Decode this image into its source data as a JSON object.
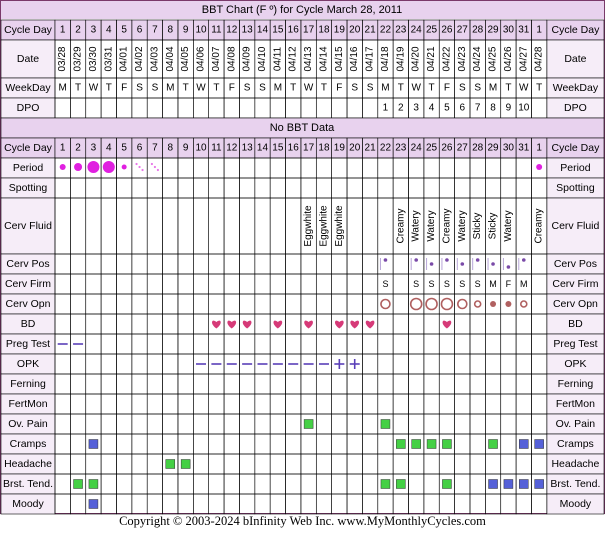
{
  "title": "BBT Chart (F º) for Cycle March 28, 2011",
  "no_data_label": "No BBT Data",
  "copyright": "Copyright © 2003-2024 bInfinity Web Inc.     www.MyMonthlyCycles.com",
  "colors": {
    "frame": "#7a3a6a",
    "header_bg": "#e8d2ee",
    "label_bg": "#f6edf8",
    "grid": "#000000",
    "period": "#e020e0",
    "spotting": "#e878e8",
    "green": "#44d044",
    "blue": "#5560d8",
    "line": "#5a3fb8",
    "heart": "#d63a78",
    "ring": "#b06060"
  },
  "chart_data": {
    "type": "table",
    "labels": {
      "cycle_day": "Cycle Day",
      "date": "Date",
      "weekday": "WeekDay",
      "dpo": "DPO",
      "period": "Period",
      "spotting": "Spotting",
      "cerv_fluid": "Cerv Fluid",
      "cerv_pos": "Cerv Pos",
      "cerv_firm": "Cerv Firm",
      "cerv_opn": "Cerv Opn",
      "bd": "BD",
      "preg_test": "Preg Test",
      "opk": "OPK",
      "ferning": "Ferning",
      "fertmon": "FertMon",
      "ov_pain": "Ov. Pain",
      "cramps": "Cramps",
      "headache": "Headache",
      "brst_tend": "Brst. Tend.",
      "moody": "Moody"
    },
    "cycle_days": [
      "1",
      "2",
      "3",
      "4",
      "5",
      "6",
      "7",
      "8",
      "9",
      "10",
      "11",
      "12",
      "13",
      "14",
      "15",
      "16",
      "17",
      "18",
      "19",
      "20",
      "21",
      "22",
      "23",
      "24",
      "25",
      "26",
      "27",
      "28",
      "29",
      "30",
      "31",
      "1"
    ],
    "dates": [
      "03/28",
      "03/29",
      "03/30",
      "03/31",
      "04/01",
      "04/02",
      "04/03",
      "04/04",
      "04/05",
      "04/06",
      "04/07",
      "04/08",
      "04/09",
      "04/10",
      "04/11",
      "04/12",
      "04/13",
      "04/14",
      "04/15",
      "04/16",
      "04/17",
      "04/18",
      "04/19",
      "04/20",
      "04/21",
      "04/22",
      "04/23",
      "04/24",
      "04/25",
      "04/26",
      "04/27",
      "04/28"
    ],
    "weekdays": [
      "M",
      "T",
      "W",
      "T",
      "F",
      "S",
      "S",
      "M",
      "T",
      "W",
      "T",
      "F",
      "S",
      "S",
      "M",
      "T",
      "W",
      "T",
      "F",
      "S",
      "S",
      "M",
      "T",
      "W",
      "T",
      "F",
      "S",
      "S",
      "M",
      "T",
      "W",
      "T"
    ],
    "dpo": [
      "",
      "",
      "",
      "",
      "",
      "",
      "",
      "",
      "",
      "",
      "",
      "",
      "",
      "",
      "",
      "",
      "",
      "",
      "",
      "",
      "",
      "1",
      "2",
      "3",
      "4",
      "5",
      "6",
      "7",
      "8",
      "9",
      "10",
      ""
    ],
    "period": [
      {
        "col": 0,
        "kind": "dot",
        "size": 3
      },
      {
        "col": 1,
        "kind": "dot",
        "size": 4
      },
      {
        "col": 2,
        "kind": "dot",
        "size": 6
      },
      {
        "col": 3,
        "kind": "dot",
        "size": 6
      },
      {
        "col": 4,
        "kind": "dot",
        "size": 2.5
      },
      {
        "col": 5,
        "kind": "spot"
      },
      {
        "col": 6,
        "kind": "spot"
      },
      {
        "col": 31,
        "kind": "dot",
        "size": 3
      }
    ],
    "cerv_fluid": [
      {
        "col": 16,
        "label": "Eggwhite"
      },
      {
        "col": 17,
        "label": "Eggwhite"
      },
      {
        "col": 18,
        "label": "Eggwhite"
      },
      {
        "col": 22,
        "label": "Creamy"
      },
      {
        "col": 23,
        "label": "Watery"
      },
      {
        "col": 24,
        "label": "Watery"
      },
      {
        "col": 25,
        "label": "Creamy"
      },
      {
        "col": 26,
        "label": "Watery"
      },
      {
        "col": 27,
        "label": "Sticky"
      },
      {
        "col": 28,
        "label": "Sticky"
      },
      {
        "col": 29,
        "label": "Watery"
      },
      {
        "col": 31,
        "label": "Creamy"
      }
    ],
    "cerv_pos": [
      {
        "col": 21,
        "level": "high"
      },
      {
        "col": 23,
        "level": "high"
      },
      {
        "col": 24,
        "level": "mid"
      },
      {
        "col": 25,
        "level": "high"
      },
      {
        "col": 26,
        "level": "mid"
      },
      {
        "col": 27,
        "level": "high"
      },
      {
        "col": 28,
        "level": "mid"
      },
      {
        "col": 29,
        "level": "low"
      },
      {
        "col": 30,
        "level": "high"
      }
    ],
    "cerv_firm": [
      {
        "col": 21,
        "value": "S"
      },
      {
        "col": 23,
        "value": "S"
      },
      {
        "col": 24,
        "value": "S"
      },
      {
        "col": 25,
        "value": "S"
      },
      {
        "col": 26,
        "value": "S"
      },
      {
        "col": 27,
        "value": "S"
      },
      {
        "col": 28,
        "value": "M"
      },
      {
        "col": 29,
        "value": "F"
      },
      {
        "col": 30,
        "value": "M"
      }
    ],
    "cerv_opn": [
      {
        "col": 21,
        "size": "medium"
      },
      {
        "col": 23,
        "size": "large"
      },
      {
        "col": 24,
        "size": "large"
      },
      {
        "col": 25,
        "size": "large"
      },
      {
        "col": 26,
        "size": "medium"
      },
      {
        "col": 27,
        "size": "small"
      },
      {
        "col": 28,
        "size": "closed"
      },
      {
        "col": 29,
        "size": "closed"
      },
      {
        "col": 30,
        "size": "small"
      }
    ],
    "bd": [
      10,
      11,
      12,
      14,
      16,
      18,
      19,
      20,
      25
    ],
    "preg_test": [
      {
        "col": 0,
        "mark": "dash"
      },
      {
        "col": 1,
        "mark": "dash"
      }
    ],
    "opk": [
      {
        "col": 9,
        "mark": "dash"
      },
      {
        "col": 10,
        "mark": "dash"
      },
      {
        "col": 11,
        "mark": "dash"
      },
      {
        "col": 12,
        "mark": "dash"
      },
      {
        "col": 13,
        "mark": "dash"
      },
      {
        "col": 14,
        "mark": "dash"
      },
      {
        "col": 15,
        "mark": "dash"
      },
      {
        "col": 16,
        "mark": "dash"
      },
      {
        "col": 17,
        "mark": "dash"
      },
      {
        "col": 18,
        "mark": "plus"
      },
      {
        "col": 19,
        "mark": "plus"
      }
    ],
    "ferning": [],
    "fertmon": [],
    "ov_pain": [
      {
        "col": 16,
        "color": "green"
      },
      {
        "col": 21,
        "color": "green"
      }
    ],
    "cramps": [
      {
        "col": 2,
        "color": "blue"
      },
      {
        "col": 22,
        "color": "green"
      },
      {
        "col": 23,
        "color": "green"
      },
      {
        "col": 24,
        "color": "green"
      },
      {
        "col": 25,
        "color": "green"
      },
      {
        "col": 28,
        "color": "green"
      },
      {
        "col": 30,
        "color": "blue"
      },
      {
        "col": 31,
        "color": "blue"
      }
    ],
    "headache": [
      {
        "col": 7,
        "color": "green"
      },
      {
        "col": 8,
        "color": "green"
      }
    ],
    "brst_tend": [
      {
        "col": 1,
        "color": "green"
      },
      {
        "col": 2,
        "color": "green"
      },
      {
        "col": 21,
        "color": "green"
      },
      {
        "col": 22,
        "color": "green"
      },
      {
        "col": 25,
        "color": "green"
      },
      {
        "col": 28,
        "color": "blue"
      },
      {
        "col": 29,
        "color": "blue"
      },
      {
        "col": 30,
        "color": "blue"
      },
      {
        "col": 31,
        "color": "blue"
      }
    ],
    "moody": [
      {
        "col": 2,
        "color": "blue"
      }
    ]
  }
}
